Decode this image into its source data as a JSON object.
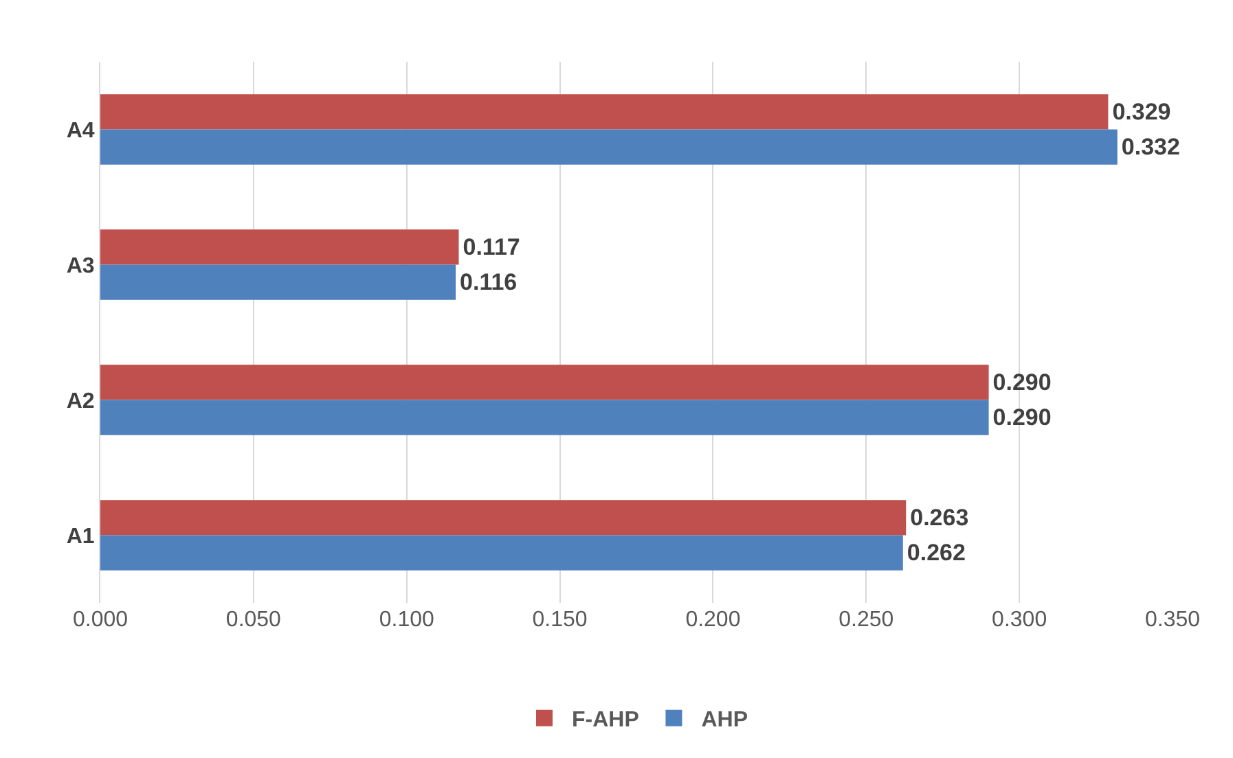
{
  "chart_data": {
    "type": "bar",
    "orientation": "horizontal",
    "categories": [
      "A4",
      "A3",
      "A2",
      "A1"
    ],
    "series": [
      {
        "name": "F-AHP",
        "color": "#c0504d",
        "values": [
          0.329,
          0.117,
          0.29,
          0.263
        ],
        "value_labels": [
          "0.329",
          "0.117",
          "0.290",
          "0.263"
        ]
      },
      {
        "name": "AHP",
        "color": "#4f81bd",
        "values": [
          0.332,
          0.116,
          0.29,
          0.262
        ],
        "value_labels": [
          "0.332",
          "0.116",
          "0.290",
          "0.262"
        ]
      }
    ],
    "xlim": [
      0,
      0.35
    ],
    "xticks": [
      {
        "value": 0,
        "label": "0.000"
      },
      {
        "value": 0.05,
        "label": "0.050"
      },
      {
        "value": 0.1,
        "label": "0.100"
      },
      {
        "value": 0.15,
        "label": "0.150"
      },
      {
        "value": 0.2,
        "label": "0.200"
      },
      {
        "value": 0.25,
        "label": "0.250"
      },
      {
        "value": 0.3,
        "label": "0.300"
      },
      {
        "value": 0.35,
        "label": "0.350"
      }
    ],
    "grid": "x",
    "legend": "bottom"
  }
}
